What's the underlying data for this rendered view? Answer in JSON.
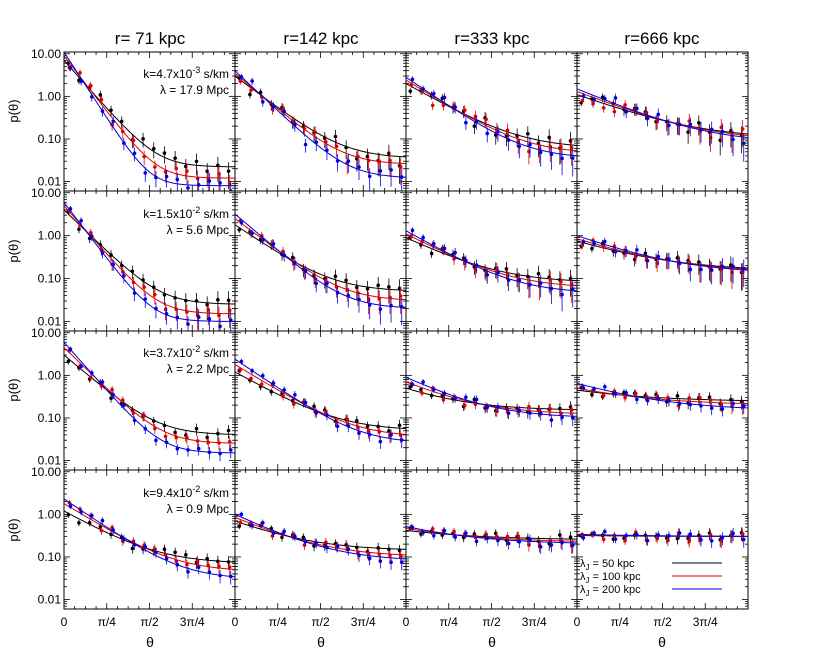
{
  "figure": {
    "columns": [
      {
        "title": "r= 71 kpc"
      },
      {
        "title": "r=142 kpc"
      },
      {
        "title": "r=333 kpc"
      },
      {
        "title": "r=666 kpc"
      }
    ],
    "rows": [
      {
        "k_label": "k=4.7x10",
        "k_exp": "-3",
        "k_unit": " s/km",
        "lambda_label": "λ =  17.9 Mpc"
      },
      {
        "k_label": "k=1.5x10",
        "k_exp": "-2",
        "k_unit": " s/km",
        "lambda_label": "λ =  5.6 Mpc"
      },
      {
        "k_label": "k=3.7x10",
        "k_exp": "-2",
        "k_unit": " s/km",
        "lambda_label": "λ =  2.2 Mpc"
      },
      {
        "k_label": "k=9.4x10",
        "k_exp": "-2",
        "k_unit": " s/km",
        "lambda_label": "λ =  0.9 Mpc"
      }
    ],
    "ylabel": "p(θ)",
    "xlabel": "θ",
    "yticks": [
      "10.00",
      "1.00",
      "0.10",
      "0.01"
    ],
    "xticks": [
      "0",
      "π/4",
      "π/2",
      "3π/4"
    ],
    "legend": [
      {
        "label": "λ",
        "sub": "J",
        "rest": " = 50 kpc",
        "color": "#000000"
      },
      {
        "label": "λ",
        "sub": "J",
        "rest": " = 100 kpc",
        "color": "#e00000"
      },
      {
        "label": "λ",
        "sub": "J",
        "rest": " = 200 kpc",
        "color": "#0000e0"
      }
    ]
  },
  "chart_data": {
    "type": "line",
    "layout": "4x4 grid of panels, rows = wavenumber k, columns = radius r",
    "y_scale": "log",
    "ylim": [
      0.006,
      11
    ],
    "xlim_rad": [
      0,
      3.1416
    ],
    "x_ticks_rad": [
      0,
      0.785,
      1.571,
      2.356
    ],
    "series_names": [
      "λJ = 50 kpc",
      "λJ = 100 kpc",
      "λJ = 200 kpc"
    ],
    "series_colors": [
      "#000000",
      "#e00000",
      "#0000e0"
    ],
    "model_params": {
      "description": "per panel [row][col], per series: p(0) and asymptotic floor, decay scale in radians",
      "p0": [
        [
          [
            7,
            9,
            11
          ],
          [
            3,
            3.5,
            4
          ],
          [
            2.0,
            2.4,
            2.8
          ],
          [
            1.1,
            1.3,
            1.5
          ]
        ],
        [
          [
            4,
            5,
            6
          ],
          [
            1.8,
            2.5,
            3.2
          ],
          [
            0.9,
            1.1,
            1.3
          ],
          [
            0.75,
            0.85,
            1.0
          ]
        ],
        [
          [
            3,
            4.5,
            6
          ],
          [
            1.2,
            1.8,
            2.4
          ],
          [
            0.5,
            0.7,
            0.9
          ],
          [
            0.45,
            0.5,
            0.65
          ]
        ],
        [
          [
            1.2,
            1.8,
            2.3
          ],
          [
            0.7,
            0.85,
            1.0
          ],
          [
            0.42,
            0.47,
            0.52
          ],
          [
            0.32,
            0.33,
            0.34
          ]
        ]
      ],
      "floor": [
        [
          [
            0.022,
            0.012,
            0.008
          ],
          [
            0.035,
            0.025,
            0.012
          ],
          [
            0.06,
            0.045,
            0.035
          ],
          [
            0.1,
            0.09,
            0.08
          ]
        ],
        [
          [
            0.025,
            0.015,
            0.01
          ],
          [
            0.05,
            0.03,
            0.02
          ],
          [
            0.08,
            0.06,
            0.045
          ],
          [
            0.15,
            0.14,
            0.13
          ]
        ],
        [
          [
            0.04,
            0.025,
            0.015
          ],
          [
            0.05,
            0.035,
            0.025
          ],
          [
            0.15,
            0.12,
            0.1
          ],
          [
            0.24,
            0.2,
            0.15
          ]
        ],
        [
          [
            0.07,
            0.045,
            0.03
          ],
          [
            0.14,
            0.1,
            0.08
          ],
          [
            0.25,
            0.22,
            0.2
          ],
          [
            0.3,
            0.3,
            0.3
          ]
        ]
      ],
      "scale": [
        [
          [
            0.3,
            0.26,
            0.22
          ],
          [
            0.45,
            0.4,
            0.36
          ],
          [
            0.6,
            0.55,
            0.5
          ],
          [
            0.9,
            0.85,
            0.8
          ]
        ],
        [
          [
            0.35,
            0.3,
            0.26
          ],
          [
            0.5,
            0.45,
            0.4
          ],
          [
            0.7,
            0.65,
            0.6
          ],
          [
            1.0,
            0.95,
            0.9
          ]
        ],
        [
          [
            0.4,
            0.35,
            0.3
          ],
          [
            0.6,
            0.55,
            0.5
          ],
          [
            0.8,
            0.75,
            0.7
          ],
          [
            1.2,
            1.1,
            1.0
          ]
        ],
        [
          [
            0.6,
            0.55,
            0.5
          ],
          [
            0.8,
            0.75,
            0.7
          ],
          [
            1.2,
            1.1,
            1.0
          ],
          [
            1.5,
            1.5,
            1.5
          ]
        ]
      ]
    }
  }
}
